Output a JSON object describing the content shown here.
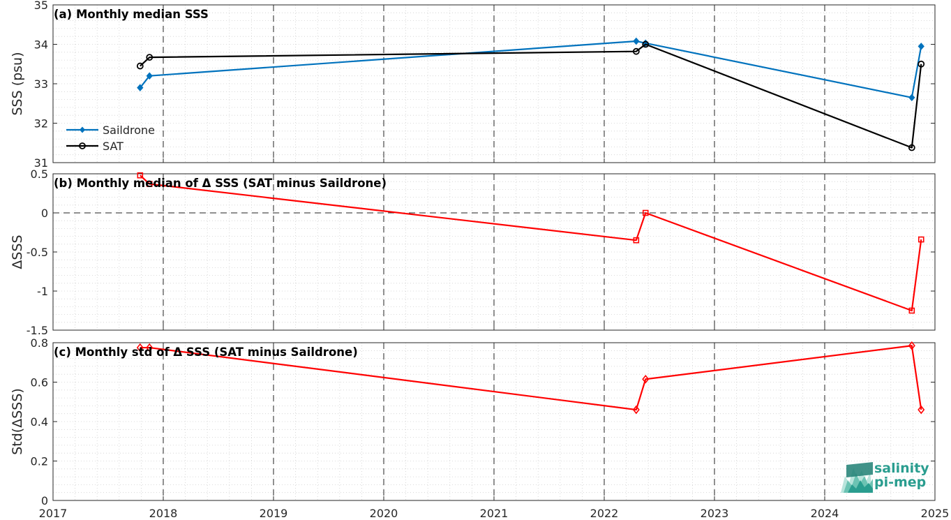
{
  "chart_data": [
    {
      "type": "line",
      "title": "(a) Monthly median SSS",
      "ylabel": "SSS (psu)",
      "xlim": [
        2017,
        2025
      ],
      "ylim": [
        31,
        35
      ],
      "yticks": [
        31,
        32,
        33,
        34,
        35
      ],
      "legend": "bottom-left",
      "series": [
        {
          "name": "Saildrone",
          "color": "#0072BD",
          "marker": "diamond",
          "x": [
            2017.79,
            2017.875,
            2022.29,
            2022.375,
            2024.79,
            2024.875
          ],
          "y": [
            32.9,
            33.2,
            34.08,
            34.03,
            32.65,
            33.95
          ]
        },
        {
          "name": "SAT",
          "color": "#000000",
          "marker": "circle",
          "x": [
            2017.79,
            2017.875,
            2022.29,
            2022.375,
            2024.79,
            2024.875
          ],
          "y": [
            33.45,
            33.67,
            33.82,
            34.0,
            31.38,
            33.5
          ]
        }
      ]
    },
    {
      "type": "line",
      "title": "(b) Monthly median of Δ SSS (SAT minus Saildrone)",
      "ylabel": "ΔSSS",
      "xlim": [
        2017,
        2025
      ],
      "ylim": [
        -1.5,
        0.5
      ],
      "yticks": [
        -1.5,
        -1,
        -0.5,
        0,
        0.5
      ],
      "series": [
        {
          "color": "#FF0000",
          "marker": "square",
          "x": [
            2017.79,
            2017.875,
            2022.29,
            2022.375,
            2024.79,
            2024.875
          ],
          "y": [
            0.48,
            0.37,
            -0.35,
            0.0,
            -1.25,
            -0.34
          ]
        }
      ]
    },
    {
      "type": "line",
      "title": "(c) Monthly std of Δ SSS (SAT minus Saildrone)",
      "ylabel": "Std(ΔSSS)",
      "xlabel": "",
      "xlim": [
        2017,
        2025
      ],
      "ylim": [
        0,
        0.8
      ],
      "yticks": [
        0,
        0.2,
        0.4,
        0.6,
        0.8
      ],
      "xticks": [
        2017,
        2018,
        2019,
        2020,
        2021,
        2022,
        2023,
        2024,
        2025
      ],
      "series": [
        {
          "color": "#FF0000",
          "marker": "diamond-open",
          "x": [
            2017.79,
            2017.875,
            2022.29,
            2022.375,
            2024.79,
            2024.875
          ],
          "y": [
            0.775,
            0.775,
            0.46,
            0.615,
            0.785,
            0.46
          ]
        }
      ]
    }
  ],
  "logo": {
    "line1": "salinity",
    "line2": "pi-mep",
    "color": "#2a9d8f"
  }
}
